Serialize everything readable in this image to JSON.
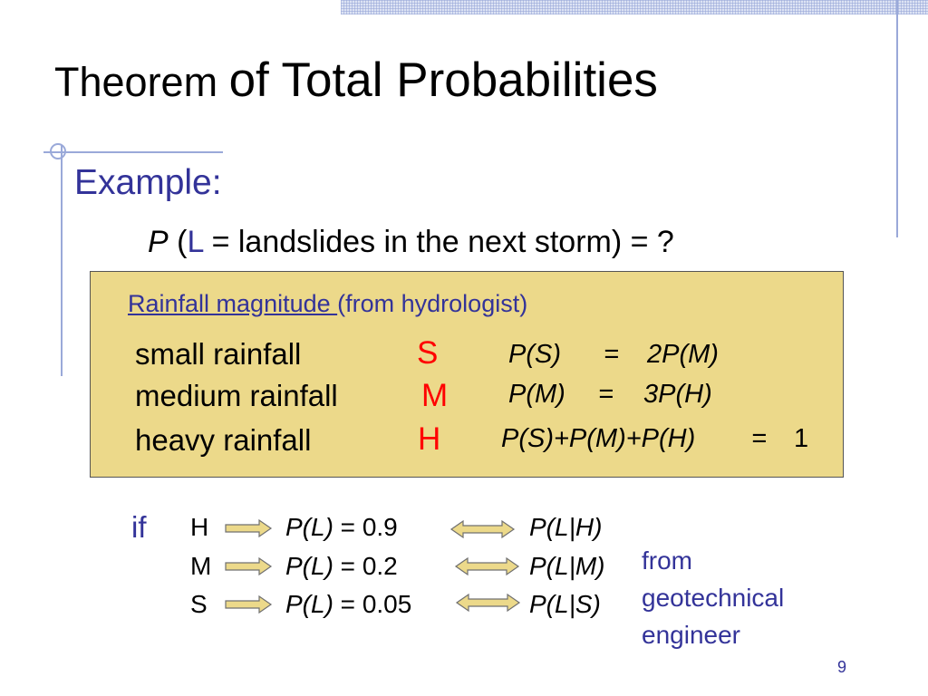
{
  "title": {
    "part1": "Theorem ",
    "part2": "of Total Probabilities"
  },
  "example_label": "Example:",
  "question": {
    "p": "P",
    "open": " (",
    "l": "L",
    "text": " = landslides in the next storm) = ?"
  },
  "box": {
    "header_link": "Rainfall magnitude ",
    "header_source": "(from hydrologist)",
    "rows": [
      {
        "label": "small rainfall",
        "symbol": "S"
      },
      {
        "label": "medium rainfall",
        "symbol": "M"
      },
      {
        "label": "heavy rainfall",
        "symbol": "H"
      }
    ],
    "equations": [
      {
        "lhs": "P(S)",
        "eq": "=",
        "rhs": "2P(M)"
      },
      {
        "lhs": "P(M)",
        "eq": "=",
        "rhs": "3P(H)"
      },
      {
        "lhs": "P(S)+P(M)+P(H)",
        "eq": "=",
        "rhs": "1"
      }
    ]
  },
  "conditional": {
    "if_label": "if",
    "rows": [
      {
        "state": "H",
        "pl": "P(L)",
        "value": " = 0.9",
        "cond": "P(L|H)"
      },
      {
        "state": "M",
        "pl": "P(L)",
        "value": " = 0.2",
        "cond": "P(L|M)"
      },
      {
        "state": "S",
        "pl": "P(L)",
        "value": " = 0.05",
        "cond": "P(L|S)"
      }
    ],
    "note": [
      "from",
      "geotechnical",
      "engineer"
    ]
  },
  "page_number": "9",
  "colors": {
    "accent_blue": "#333399",
    "highlight_red": "#ff0000",
    "box_fill": "#ecd98a",
    "arrow_fill": "#ecd98a"
  }
}
